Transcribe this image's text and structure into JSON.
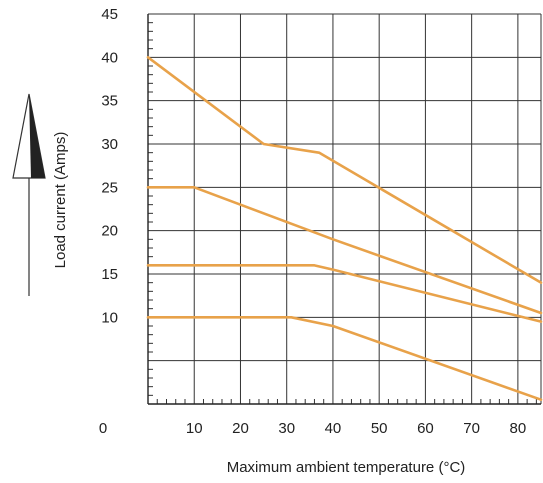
{
  "chart_data": {
    "type": "line",
    "title": "",
    "xlabel": "Maximum ambient temperature (°C)",
    "ylabel": "Load current (Amps)",
    "xlim": [
      0,
      85
    ],
    "ylim": [
      0,
      45
    ],
    "x_ticks": [
      0,
      10,
      20,
      30,
      40,
      50,
      60,
      70,
      80
    ],
    "x_tick_labels": [
      "0",
      "10",
      "20",
      "30",
      "40",
      "50",
      "60",
      "70",
      "80"
    ],
    "y_ticks": [
      10,
      15,
      20,
      25,
      30,
      35,
      40,
      45
    ],
    "y_tick_labels": [
      "10",
      "15",
      "20",
      "25",
      "30",
      "35",
      "40",
      "45"
    ],
    "grid": true,
    "series_color": "#e8a24a",
    "series": [
      {
        "points": [
          [
            0,
            40
          ],
          [
            25,
            30
          ],
          [
            37,
            29
          ],
          [
            85,
            14
          ]
        ]
      },
      {
        "points": [
          [
            0,
            25
          ],
          [
            10,
            25
          ],
          [
            40,
            19
          ],
          [
            85,
            10.5
          ]
        ]
      },
      {
        "points": [
          [
            0,
            16
          ],
          [
            36,
            16
          ],
          [
            40,
            15.5
          ],
          [
            85,
            9.5
          ]
        ]
      },
      {
        "points": [
          [
            0,
            10
          ],
          [
            31,
            10
          ],
          [
            40,
            9
          ],
          [
            85,
            0.5
          ]
        ]
      }
    ]
  }
}
